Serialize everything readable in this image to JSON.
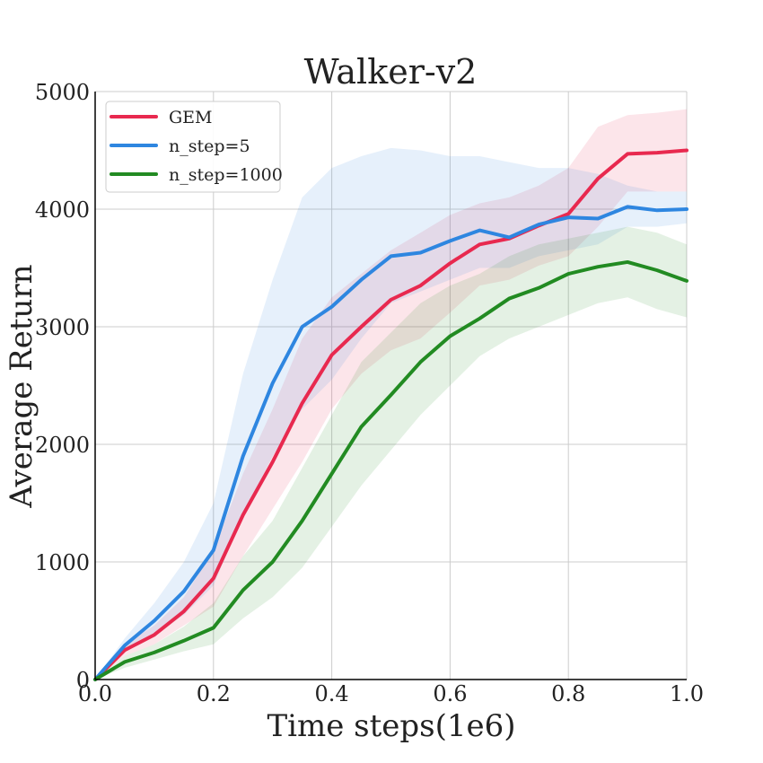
{
  "chart_data": {
    "type": "line",
    "title": "Walker-v2",
    "xlabel": "Time steps(1e6)",
    "ylabel": "Average Return",
    "xlim": [
      0,
      1
    ],
    "ylim": [
      0,
      5000
    ],
    "grid": true,
    "legend_position": "top-left",
    "x_ticks": [
      0.0,
      0.2,
      0.4,
      0.6,
      0.8,
      1.0
    ],
    "x_tick_labels": [
      "0.0",
      "0.2",
      "0.4",
      "0.6",
      "0.8",
      "1.0"
    ],
    "y_ticks": [
      0,
      1000,
      2000,
      3000,
      4000,
      5000
    ],
    "y_tick_labels": [
      "0",
      "1000",
      "2000",
      "3000",
      "4000",
      "5000"
    ],
    "x": [
      0.0,
      0.05,
      0.1,
      0.15,
      0.2,
      0.25,
      0.3,
      0.35,
      0.4,
      0.45,
      0.5,
      0.55,
      0.6,
      0.65,
      0.7,
      0.75,
      0.8,
      0.85,
      0.9,
      0.95,
      1.0
    ],
    "series": [
      {
        "name": "GEM",
        "color": "#e8294f",
        "values": [
          0,
          250,
          380,
          580,
          860,
          1400,
          1850,
          2350,
          2760,
          3000,
          3230,
          3350,
          3540,
          3700,
          3750,
          3860,
          3960,
          4260,
          4470,
          4480,
          4500
        ],
        "upper": [
          0,
          300,
          460,
          700,
          1100,
          1750,
          2300,
          2900,
          3250,
          3450,
          3650,
          3800,
          3950,
          4050,
          4100,
          4200,
          4350,
          4700,
          4800,
          4820,
          4850
        ],
        "lower": [
          0,
          200,
          300,
          460,
          620,
          1050,
          1450,
          1850,
          2300,
          2600,
          2800,
          2900,
          3120,
          3350,
          3400,
          3520,
          3600,
          3850,
          4150,
          4150,
          4150
        ]
      },
      {
        "name": "n_step=5",
        "color": "#2e86e0",
        "values": [
          0,
          290,
          500,
          750,
          1100,
          1900,
          2520,
          3000,
          3170,
          3400,
          3600,
          3630,
          3730,
          3820,
          3760,
          3870,
          3930,
          3920,
          4020,
          3990,
          4000
        ],
        "upper": [
          0,
          350,
          650,
          1000,
          1500,
          2600,
          3400,
          4100,
          4350,
          4450,
          4520,
          4500,
          4450,
          4450,
          4400,
          4350,
          4350,
          4300,
          4200,
          4150,
          4150
        ],
        "lower": [
          0,
          230,
          380,
          550,
          800,
          1400,
          1900,
          2300,
          2550,
          2900,
          3200,
          3300,
          3400,
          3500,
          3500,
          3600,
          3650,
          3700,
          3850,
          3850,
          3880
        ]
      },
      {
        "name": "n_step=1000",
        "color": "#228b22",
        "values": [
          0,
          150,
          230,
          330,
          440,
          760,
          1000,
          1350,
          1750,
          2150,
          2420,
          2700,
          2920,
          3070,
          3240,
          3330,
          3450,
          3510,
          3550,
          3480,
          3390
        ],
        "upper": [
          0,
          200,
          300,
          450,
          650,
          1050,
          1350,
          1800,
          2250,
          2700,
          2950,
          3200,
          3350,
          3450,
          3600,
          3700,
          3750,
          3800,
          3850,
          3800,
          3700
        ],
        "lower": [
          0,
          100,
          170,
          240,
          300,
          520,
          700,
          950,
          1300,
          1650,
          1950,
          2250,
          2500,
          2750,
          2900,
          3000,
          3100,
          3200,
          3250,
          3150,
          3080
        ]
      }
    ]
  }
}
